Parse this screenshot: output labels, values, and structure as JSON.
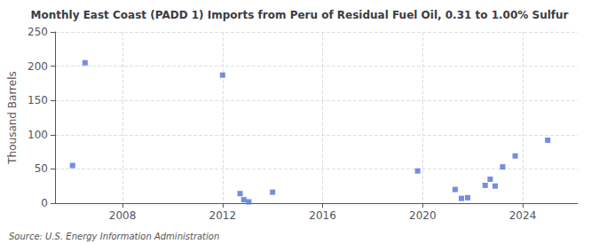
{
  "chart_data": {
    "type": "scatter",
    "title": "Monthly East Coast (PADD 1) Imports from Peru of Residual Fuel Oil, 0.31 to 1.00% Sulfur",
    "ylabel": "Thousand Barrels",
    "annotations": [
      "Source: U.S. Energy Information Administration"
    ],
    "x": [
      2006.0,
      2006.5,
      2012.0,
      2012.7,
      2012.85,
      2013.05,
      2014.0,
      2019.8,
      2021.3,
      2021.55,
      2021.8,
      2022.5,
      2022.7,
      2022.9,
      2023.2,
      2023.7,
      2025.0
    ],
    "values": [
      55,
      205,
      187,
      14,
      5,
      2,
      16,
      47,
      20,
      7,
      8,
      26,
      35,
      25,
      53,
      69,
      92
    ],
    "xlim": [
      2005.3,
      2026.2
    ],
    "xticks": [
      2008,
      2012,
      2016,
      2020,
      2024
    ],
    "ylim": [
      0,
      250
    ],
    "yticks": [
      0,
      50,
      100,
      150,
      200,
      250
    ],
    "grid": true,
    "marker": "square"
  }
}
